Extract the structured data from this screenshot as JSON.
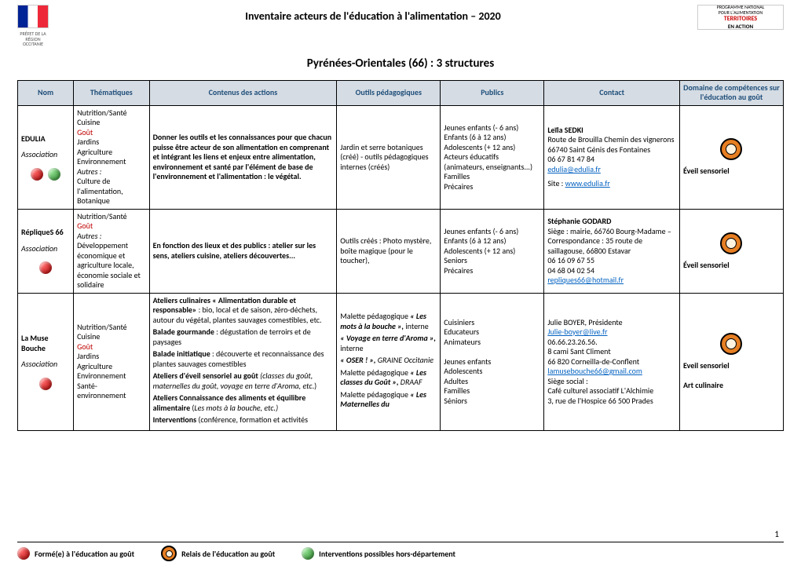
{
  "header": {
    "title": "Inventaire acteurs de l'éducation à l'alimentation – 2020",
    "logo_fr_sub": "PRÉFET DE LA RÉGION OCCITANIE",
    "pna_line1": "PROGRAMME NATIONAL",
    "pna_line2": "POUR L'ALIMENTATION",
    "pna_line3": "TERRITOIRES",
    "pna_line4": "EN ACTION"
  },
  "page_title": "Pyrénées-Orientales (66) : 3 structures",
  "columns": {
    "nom": "Nom",
    "them": "Thématiques",
    "cont": "Contenus des actions",
    "out": "Outils pédagogiques",
    "pub": "Publics",
    "contact": "Contact",
    "dom": "Domaine de compétences sur l'éducation au goût"
  },
  "rows": [
    {
      "nom": {
        "org": "EDULIA",
        "type": "Association",
        "dots": [
          "red",
          "green"
        ]
      },
      "them_lines": [
        "Nutrition/Santé",
        "Cuisine",
        "{gout}Goût",
        "Jardins",
        "Agriculture",
        "Environnement",
        "{ital}Autres :",
        "Culture de l'alimentation, Botanique"
      ],
      "contenus_html": "<span class='bold'>Donner les outils et les connaissances pour que chacun puisse être acteur de son alimentation en comprenant et intégrant les liens et enjeux entre alimentation, environnement et santé par l'élément de base de l'environnement et l'alimentation : le végétal.</span>",
      "outils_html": "Jardin et serre botaniques (créé) - outils pédagogiques internes (créés)",
      "publics": [
        "Jeunes enfants (- 6 ans)",
        "Enfants (6 à 12 ans)",
        "Adolescents (+ 12 ans)",
        "Acteurs éducatifs (animateurs, enseignants...)",
        "Familles",
        "Précaires"
      ],
      "contact": {
        "name": "Leïla SEDKI",
        "addr": "Route de Brouilla Chemin des vignerons 66740 Saint Génis des Fontaines",
        "phones": [
          "06 67 81 47 84"
        ],
        "emails": [
          "edulia@edulia.fr"
        ],
        "site_label": "Site :",
        "site_url": "www.edulia.fr"
      },
      "domain": [
        "Éveil sensoriel"
      ]
    },
    {
      "nom": {
        "org": "RépliqueS 66",
        "type": "Association",
        "dots": [
          "red"
        ]
      },
      "them_lines": [
        "Nutrition/Santé",
        "{gout}Goût",
        "{ital}Autres :",
        "Développement économique et agriculture locale, économie sociale et solidaire"
      ],
      "contenus_html": "<span class='bold'>En fonction des lieux et des publics : atelier sur les sens, ateliers cuisine, ateliers découvertes...</span>",
      "outils_html": "Outils créés : Photo mystère, boîte magique (pour le toucher),",
      "publics": [
        "Jeunes enfants (- 6 ans)",
        "Enfants (6 à 12 ans)",
        "Adolescents (+ 12 ans)",
        "Seniors",
        "Précaires"
      ],
      "contact": {
        "name": "Stéphanie GODARD",
        "addr": "Siège : mairie, 66760 Bourg-Madame – Correspondance : 35 route de saillagouse, 66800 Estavar",
        "phones": [
          "06 16 09 67 55",
          "04 68 04 02 54"
        ],
        "emails": [
          "repliques66@hotmail.fr"
        ]
      },
      "domain": [
        "Éveil sensoriel"
      ]
    },
    {
      "nom": {
        "org": "La Muse Bouche",
        "type": "Association",
        "dots": [
          "red"
        ]
      },
      "them_lines": [
        "Nutrition/Santé",
        "Cuisine",
        "{gout}Goût",
        "Jardins",
        "Agriculture",
        "Environnement",
        "Santé-environnement"
      ],
      "contenus_html": "<p><span class='bold'>Ateliers culinaires « Alimentation durable et responsable»</span> : bio, local et de saison, zéro-déchets, autour du végétal, plantes sauvages comestibles, etc.</p><p><span class='bold'>Balade gourmande</span> : dégustation de terroirs et de paysages</p><p><span class='bold'>Balade initiatique</span> : découverte et reconnaissance des plantes sauvages comestibles</p><p><span class='bold'>Ateliers d'éveil sensoriel au goût</span> <span class='ital'>(classes du goût, maternelles du goût, voyage en terre d'Aroma, etc</span>.)</p><p><span class='bold'>Ateliers Connaissance des aliments et équilibre alimentaire</span> (<span class='ital'>Les mots à la bouche, etc.)</span></p><p><span class='bold'>Interventions</span> (conférence, formation et activités</p>",
      "outils_html": "<p>Malette pédagogique <span class='bold ital'>« Les mots à la bouche »,</span> interne</p><p><span class='bold ital'>« Voyage en terre d'Aroma »,</span> interne</p><p><span class='bold ital'>« OSER ! »,</span> <span class='ital'>GRAINE Occitanie</span></p><p>Malette pédagogique <span class='bold ital'>« Les classes du Goût »,</span> <span class='ital'>DRAAF</span></p><p>Malette pédagogique <span class='bold ital'>« Les Maternelles du</span></p>",
      "publics": [
        "Cuisiniers",
        "Educateurs",
        "Animateurs",
        "",
        "Jeunes enfants",
        "Adolescents",
        "Adultes",
        "Familles",
        "Séniors"
      ],
      "contact": {
        "name_plain": "Julie BOYER, Présidente",
        "emails_top": [
          "Julie-boyer@live.fr"
        ],
        "phones": [
          "06.66.23.26.56."
        ],
        "addr": "8 cami Sant Climent\n66 820 Corneilla-de-Conflent",
        "emails": [
          "lamusebouche66@gmail.com"
        ],
        "addr2": "Siège social :\nCafé culturel associatif L'Alchimie\n3, rue de l'Hospice 66 500 Prades"
      },
      "domain": [
        "Eveil sensoriel",
        "",
        "Art culinaire"
      ]
    }
  ],
  "page_number": "1",
  "legend": {
    "l1": "Formé(e) à l'éducation au goût",
    "l2": "Relais de l'éducation au goût",
    "l3": "Interventions possibles hors-département"
  }
}
